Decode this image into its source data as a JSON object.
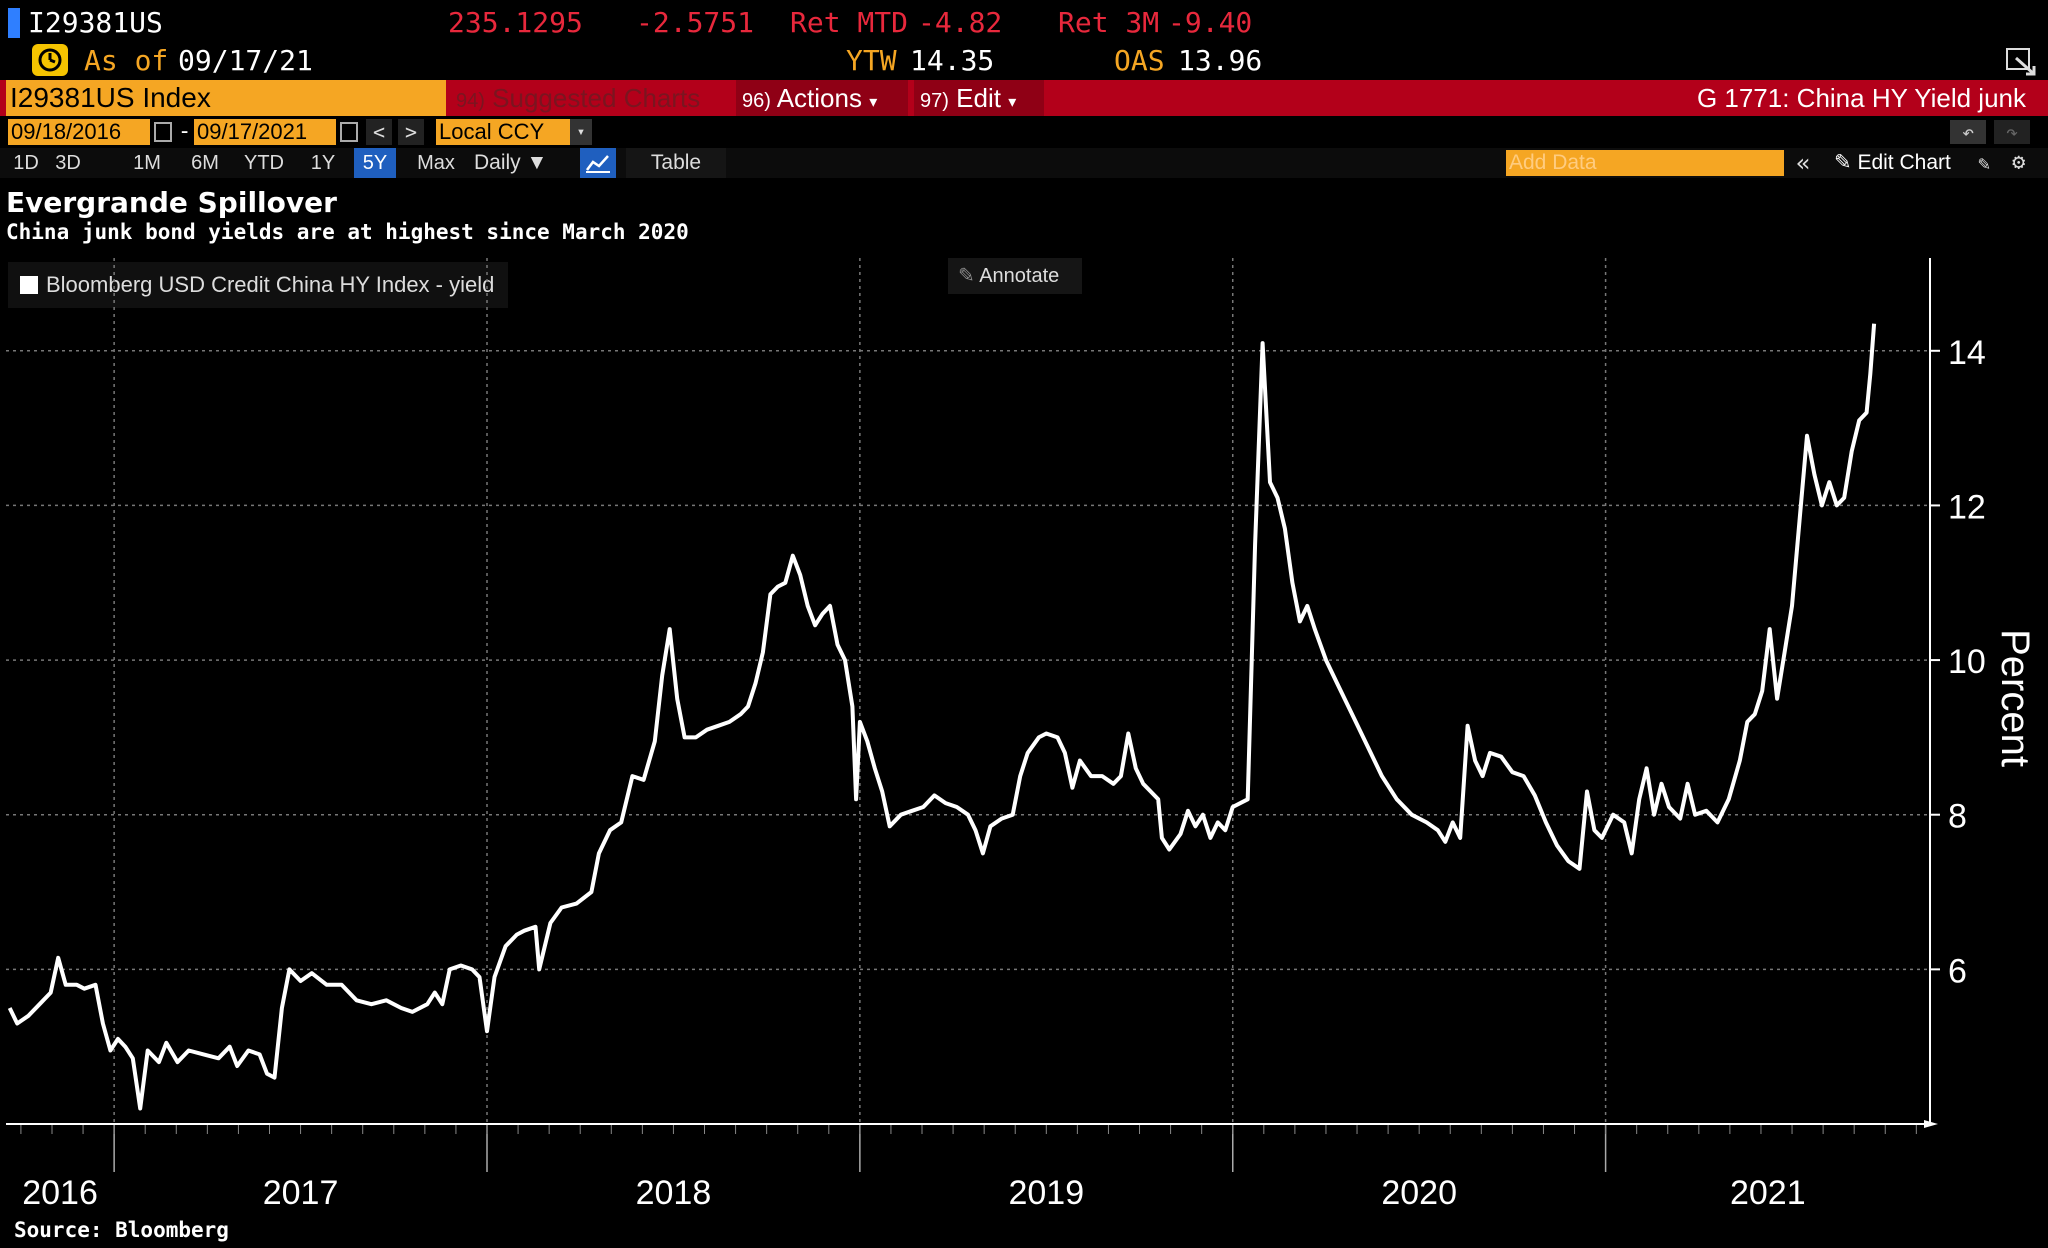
{
  "header": {
    "ticker": "I29381US",
    "price": "235.1295",
    "change": "-2.5751",
    "ret_mtd_label": "Ret MTD",
    "ret_mtd_value": "-4.82",
    "ret_3m_label": "Ret 3M",
    "ret_3m_value": "-9.40",
    "as_of_label": "As of",
    "as_of_date": "09/17/21",
    "ytw_label": "YTW",
    "ytw_value": "14.35",
    "oas_label": "OAS",
    "oas_value": "13.96"
  },
  "toolbar": {
    "security": "I29381US Index",
    "suggested_num": "94)",
    "suggested_label": "Suggested Charts",
    "actions_num": "96)",
    "actions_label": "Actions",
    "edit_num": "97)",
    "edit_label": "Edit",
    "chart_title": "G 1771: China HY Yield junk"
  },
  "range": {
    "start": "09/18/2016",
    "dash": "-",
    "end": "09/17/2021",
    "currency": "Local CCY"
  },
  "periods": [
    "1D",
    "3D",
    "1M",
    "6M",
    "YTD",
    "1Y",
    "5Y",
    "Max"
  ],
  "active_period": "5Y",
  "frequency": "Daily",
  "table_label": "Table",
  "add_data_placeholder": "Add Data",
  "edit_chart_label": "Edit Chart",
  "annotate_label": "Annotate",
  "source": "Source: Bloomberg",
  "colors": {
    "accent_orange": "#f5a623",
    "toolbar_red": "#b3001a",
    "active_blue": "#1f5fbf",
    "line": "#ffffff",
    "background": "#000000"
  },
  "chart_data": {
    "type": "line",
    "title": "Evergrande Spillover",
    "subtitle": "China junk bond yields are at highest since March 2020",
    "ylabel": "Percent",
    "ylim": [
      4,
      15.2
    ],
    "yticks": [
      6,
      8,
      10,
      12,
      14
    ],
    "xlim": [
      2016.71,
      2021.87
    ],
    "xticks": [
      "2016",
      "2017",
      "2018",
      "2019",
      "2020",
      "2021"
    ],
    "grid": true,
    "legend_position": "top-left",
    "series": [
      {
        "name": "Bloomberg USD Credit China HY Index - yield",
        "points": [
          [
            2016.72,
            5.5
          ],
          [
            2016.74,
            5.3
          ],
          [
            2016.77,
            5.4
          ],
          [
            2016.8,
            5.55
          ],
          [
            2016.83,
            5.7
          ],
          [
            2016.85,
            6.15
          ],
          [
            2016.87,
            5.8
          ],
          [
            2016.9,
            5.8
          ],
          [
            2016.92,
            5.75
          ],
          [
            2016.95,
            5.8
          ],
          [
            2016.97,
            5.3
          ],
          [
            2016.99,
            4.95
          ],
          [
            2017.01,
            5.1
          ],
          [
            2017.03,
            5.0
          ],
          [
            2017.05,
            4.85
          ],
          [
            2017.07,
            4.2
          ],
          [
            2017.09,
            4.95
          ],
          [
            2017.12,
            4.8
          ],
          [
            2017.14,
            5.05
          ],
          [
            2017.17,
            4.8
          ],
          [
            2017.2,
            4.95
          ],
          [
            2017.24,
            4.9
          ],
          [
            2017.28,
            4.85
          ],
          [
            2017.31,
            5.0
          ],
          [
            2017.33,
            4.75
          ],
          [
            2017.36,
            4.95
          ],
          [
            2017.39,
            4.9
          ],
          [
            2017.41,
            4.65
          ],
          [
            2017.43,
            4.6
          ],
          [
            2017.45,
            5.5
          ],
          [
            2017.47,
            6.0
          ],
          [
            2017.5,
            5.85
          ],
          [
            2017.53,
            5.95
          ],
          [
            2017.57,
            5.8
          ],
          [
            2017.61,
            5.8
          ],
          [
            2017.65,
            5.6
          ],
          [
            2017.69,
            5.55
          ],
          [
            2017.73,
            5.6
          ],
          [
            2017.77,
            5.5
          ],
          [
            2017.8,
            5.45
          ],
          [
            2017.84,
            5.55
          ],
          [
            2017.86,
            5.7
          ],
          [
            2017.88,
            5.55
          ],
          [
            2017.9,
            6.0
          ],
          [
            2017.93,
            6.05
          ],
          [
            2017.96,
            6.0
          ],
          [
            2017.98,
            5.9
          ],
          [
            2018.0,
            5.2
          ],
          [
            2018.02,
            5.9
          ],
          [
            2018.05,
            6.3
          ],
          [
            2018.08,
            6.45
          ],
          [
            2018.1,
            6.5
          ],
          [
            2018.13,
            6.55
          ],
          [
            2018.14,
            6.0
          ],
          [
            2018.17,
            6.6
          ],
          [
            2018.2,
            6.8
          ],
          [
            2018.24,
            6.85
          ],
          [
            2018.28,
            7.0
          ],
          [
            2018.3,
            7.5
          ],
          [
            2018.33,
            7.8
          ],
          [
            2018.36,
            7.9
          ],
          [
            2018.39,
            8.5
          ],
          [
            2018.42,
            8.45
          ],
          [
            2018.45,
            8.95
          ],
          [
            2018.47,
            9.8
          ],
          [
            2018.49,
            10.4
          ],
          [
            2018.51,
            9.5
          ],
          [
            2018.53,
            9.0
          ],
          [
            2018.56,
            9.0
          ],
          [
            2018.59,
            9.1
          ],
          [
            2018.62,
            9.15
          ],
          [
            2018.65,
            9.2
          ],
          [
            2018.68,
            9.3
          ],
          [
            2018.7,
            9.4
          ],
          [
            2018.72,
            9.7
          ],
          [
            2018.74,
            10.1
          ],
          [
            2018.76,
            10.85
          ],
          [
            2018.78,
            10.95
          ],
          [
            2018.8,
            11.0
          ],
          [
            2018.82,
            11.35
          ],
          [
            2018.84,
            11.1
          ],
          [
            2018.86,
            10.7
          ],
          [
            2018.88,
            10.45
          ],
          [
            2018.9,
            10.6
          ],
          [
            2018.92,
            10.7
          ],
          [
            2018.94,
            10.2
          ],
          [
            2018.96,
            10.0
          ],
          [
            2018.98,
            9.4
          ],
          [
            2018.99,
            8.2
          ],
          [
            2019.0,
            9.2
          ],
          [
            2019.02,
            8.95
          ],
          [
            2019.04,
            8.6
          ],
          [
            2019.06,
            8.3
          ],
          [
            2019.08,
            7.85
          ],
          [
            2019.11,
            8.0
          ],
          [
            2019.14,
            8.05
          ],
          [
            2019.17,
            8.1
          ],
          [
            2019.2,
            8.25
          ],
          [
            2019.23,
            8.15
          ],
          [
            2019.26,
            8.1
          ],
          [
            2019.29,
            8.0
          ],
          [
            2019.31,
            7.8
          ],
          [
            2019.33,
            7.5
          ],
          [
            2019.35,
            7.85
          ],
          [
            2019.38,
            7.95
          ],
          [
            2019.41,
            8.0
          ],
          [
            2019.43,
            8.5
          ],
          [
            2019.45,
            8.8
          ],
          [
            2019.48,
            9.0
          ],
          [
            2019.5,
            9.05
          ],
          [
            2019.53,
            9.0
          ],
          [
            2019.55,
            8.8
          ],
          [
            2019.57,
            8.35
          ],
          [
            2019.59,
            8.7
          ],
          [
            2019.62,
            8.5
          ],
          [
            2019.65,
            8.5
          ],
          [
            2019.68,
            8.4
          ],
          [
            2019.7,
            8.5
          ],
          [
            2019.72,
            9.05
          ],
          [
            2019.74,
            8.6
          ],
          [
            2019.76,
            8.4
          ],
          [
            2019.78,
            8.3
          ],
          [
            2019.8,
            8.2
          ],
          [
            2019.81,
            7.7
          ],
          [
            2019.83,
            7.55
          ],
          [
            2019.86,
            7.75
          ],
          [
            2019.88,
            8.05
          ],
          [
            2019.9,
            7.85
          ],
          [
            2019.92,
            8.0
          ],
          [
            2019.94,
            7.7
          ],
          [
            2019.96,
            7.9
          ],
          [
            2019.98,
            7.8
          ],
          [
            2020.0,
            8.1
          ],
          [
            2020.04,
            8.2
          ],
          [
            2020.06,
            11.5
          ],
          [
            2020.08,
            14.1
          ],
          [
            2020.1,
            12.3
          ],
          [
            2020.12,
            12.1
          ],
          [
            2020.14,
            11.7
          ],
          [
            2020.16,
            11.0
          ],
          [
            2020.18,
            10.5
          ],
          [
            2020.2,
            10.7
          ],
          [
            2020.22,
            10.4
          ],
          [
            2020.25,
            10.0
          ],
          [
            2020.28,
            9.7
          ],
          [
            2020.3,
            9.5
          ],
          [
            2020.33,
            9.2
          ],
          [
            2020.36,
            8.9
          ],
          [
            2020.4,
            8.5
          ],
          [
            2020.44,
            8.2
          ],
          [
            2020.48,
            8.0
          ],
          [
            2020.52,
            7.9
          ],
          [
            2020.55,
            7.8
          ],
          [
            2020.57,
            7.65
          ],
          [
            2020.59,
            7.9
          ],
          [
            2020.61,
            7.7
          ],
          [
            2020.63,
            9.15
          ],
          [
            2020.65,
            8.7
          ],
          [
            2020.67,
            8.5
          ],
          [
            2020.69,
            8.8
          ],
          [
            2020.72,
            8.75
          ],
          [
            2020.75,
            8.55
          ],
          [
            2020.78,
            8.5
          ],
          [
            2020.81,
            8.25
          ],
          [
            2020.84,
            7.9
          ],
          [
            2020.87,
            7.6
          ],
          [
            2020.9,
            7.4
          ],
          [
            2020.93,
            7.3
          ],
          [
            2020.95,
            8.3
          ],
          [
            2020.97,
            7.8
          ],
          [
            2020.99,
            7.7
          ],
          [
            2021.02,
            8.0
          ],
          [
            2021.05,
            7.9
          ],
          [
            2021.07,
            7.5
          ],
          [
            2021.09,
            8.2
          ],
          [
            2021.11,
            8.6
          ],
          [
            2021.13,
            8.0
          ],
          [
            2021.15,
            8.4
          ],
          [
            2021.17,
            8.1
          ],
          [
            2021.2,
            7.95
          ],
          [
            2021.22,
            8.4
          ],
          [
            2021.24,
            8.0
          ],
          [
            2021.27,
            8.05
          ],
          [
            2021.3,
            7.9
          ],
          [
            2021.33,
            8.2
          ],
          [
            2021.36,
            8.7
          ],
          [
            2021.38,
            9.2
          ],
          [
            2021.4,
            9.3
          ],
          [
            2021.42,
            9.6
          ],
          [
            2021.44,
            10.4
          ],
          [
            2021.46,
            9.5
          ],
          [
            2021.48,
            10.1
          ],
          [
            2021.5,
            10.7
          ],
          [
            2021.52,
            11.8
          ],
          [
            2021.54,
            12.9
          ],
          [
            2021.56,
            12.4
          ],
          [
            2021.58,
            12.0
          ],
          [
            2021.6,
            12.3
          ],
          [
            2021.62,
            12.0
          ],
          [
            2021.64,
            12.1
          ],
          [
            2021.66,
            12.7
          ],
          [
            2021.68,
            13.1
          ],
          [
            2021.7,
            13.2
          ],
          [
            2021.71,
            13.7
          ],
          [
            2021.72,
            14.35
          ]
        ]
      }
    ]
  }
}
